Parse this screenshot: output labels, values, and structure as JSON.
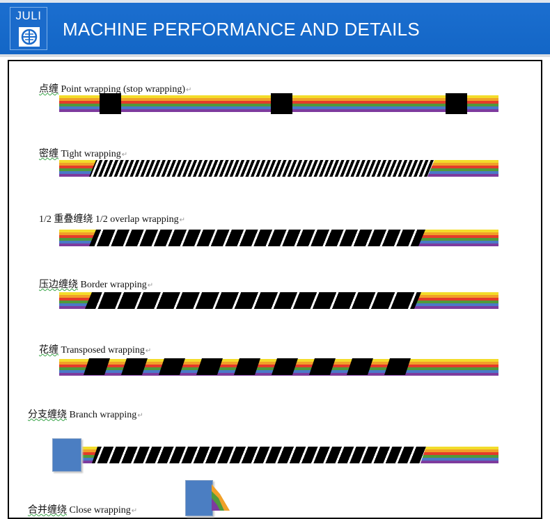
{
  "header": {
    "logo_text": "JULI",
    "title": "MACHINE PERFORMANCE AND DETAILS"
  },
  "sections": [
    {
      "cn": "点缠",
      "en": " Point wrapping (stop wrapping)"
    },
    {
      "cn": "密缠",
      "en": " Tight wrapping"
    },
    {
      "cn": "1/2 重叠缠绕",
      "en": " 1/2 overlap wrapping"
    },
    {
      "cn": "压边缠绕",
      "en": " Border wrapping"
    },
    {
      "cn": "花缠",
      "en": " Transposed  wrapping"
    },
    {
      "cn": "分支缠绕",
      "en": " Branch wrapping"
    },
    {
      "cn": "合并缠绕",
      "en": " Close wrapping"
    }
  ],
  "colors": {
    "header_blue": "#1366c6",
    "cable": [
      "#f3dc2a",
      "#f0a028",
      "#e43b2a",
      "#4f9a3b",
      "#4a78c8",
      "#7d3b9e"
    ],
    "connector": "#4b7ec2"
  }
}
